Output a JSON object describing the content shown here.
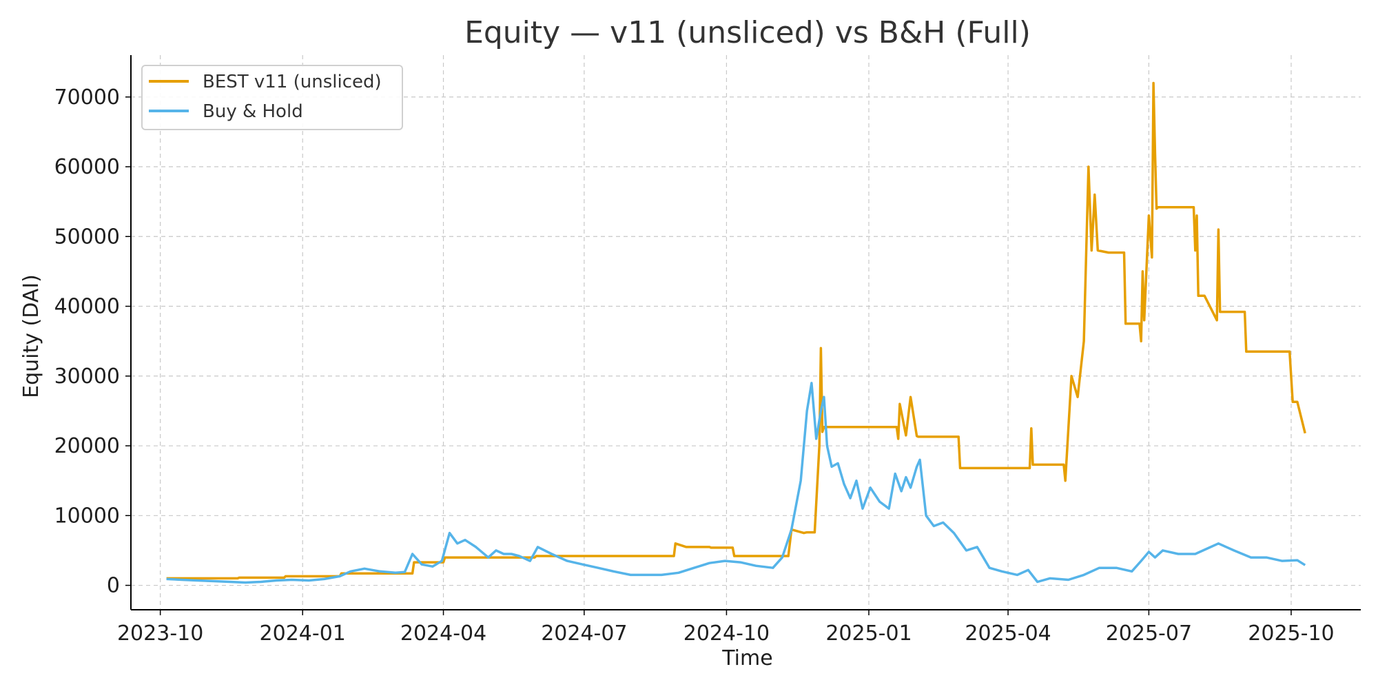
{
  "chart_data": {
    "type": "line",
    "title": "Equity — v11 (unsliced) vs B&H (Full)",
    "xlabel": "Time",
    "ylabel": "Equity (DAI)",
    "xlim": [
      "2023-09-12",
      "2025-11-15"
    ],
    "ylim": [
      -3500,
      76000
    ],
    "x_ticks": [
      "2023-10",
      "2024-01",
      "2024-04",
      "2024-07",
      "2024-10",
      "2025-01",
      "2025-04",
      "2025-07",
      "2025-10"
    ],
    "y_ticks": [
      0,
      10000,
      20000,
      30000,
      40000,
      50000,
      60000,
      70000
    ],
    "grid": true,
    "legend_position": "top-left",
    "series": [
      {
        "name": "BEST v11 (unsliced)",
        "color": "#E69F00",
        "x": [
          "2023-10-05",
          "2023-11-20",
          "2023-11-21",
          "2023-12-20",
          "2023-12-21",
          "2024-01-25",
          "2024-01-26",
          "2024-03-12",
          "2024-03-13",
          "2024-04-01",
          "2024-04-02",
          "2024-05-30",
          "2024-05-31",
          "2024-08-28",
          "2024-08-29",
          "2024-09-05",
          "2024-09-06",
          "2024-09-20",
          "2024-09-21",
          "2024-10-05",
          "2024-10-06",
          "2024-11-10",
          "2024-11-12",
          "2024-11-20",
          "2024-11-22",
          "2024-11-27",
          "2024-11-30",
          "2024-12-01",
          "2024-12-02",
          "2024-12-03",
          "2025-01-19",
          "2025-01-20",
          "2025-01-21",
          "2025-01-25",
          "2025-01-28",
          "2025-02-01",
          "2025-02-02",
          "2025-02-03",
          "2025-02-04",
          "2025-02-28",
          "2025-03-01",
          "2025-04-15",
          "2025-04-16",
          "2025-04-17",
          "2025-05-07",
          "2025-05-08",
          "2025-05-12",
          "2025-05-16",
          "2025-05-20",
          "2025-05-23",
          "2025-05-25",
          "2025-05-27",
          "2025-05-29",
          "2025-06-05",
          "2025-06-06",
          "2025-06-15",
          "2025-06-16",
          "2025-06-25",
          "2025-06-26",
          "2025-06-27",
          "2025-06-28",
          "2025-07-01",
          "2025-07-03",
          "2025-07-04",
          "2025-07-05",
          "2025-07-06",
          "2025-07-07",
          "2025-07-08",
          "2025-07-09",
          "2025-07-30",
          "2025-07-31",
          "2025-08-01",
          "2025-08-02",
          "2025-08-03",
          "2025-08-04",
          "2025-08-06",
          "2025-08-14",
          "2025-08-15",
          "2025-08-16",
          "2025-08-18",
          "2025-09-01",
          "2025-09-02",
          "2025-09-03",
          "2025-09-30",
          "2025-10-02",
          "2025-10-05",
          "2025-10-10"
        ],
        "values": [
          1000,
          1000,
          1100,
          1100,
          1300,
          1300,
          1700,
          1700,
          3300,
          3300,
          4000,
          4000,
          4200,
          4200,
          6000,
          5500,
          5500,
          5500,
          5400,
          5400,
          4200,
          4200,
          8000,
          7500,
          7600,
          7600,
          20000,
          34000,
          22000,
          22700,
          22700,
          21000,
          26000,
          21500,
          27000,
          21400,
          21300,
          21300,
          21300,
          21300,
          16800,
          16800,
          22500,
          17300,
          17300,
          15000,
          30000,
          27000,
          35000,
          60000,
          48000,
          56000,
          48000,
          47700,
          47700,
          47700,
          37500,
          37500,
          35000,
          45000,
          38000,
          53000,
          47000,
          72000,
          62000,
          54000,
          54200,
          54200,
          54200,
          54200,
          48000,
          53000,
          41500,
          41500,
          41500,
          41500,
          38000,
          51000,
          39200,
          39200,
          39200,
          33500,
          33500,
          33500,
          26300,
          26300,
          21800
        ]
      },
      {
        "name": "Buy & Hold",
        "color": "#56B4E9",
        "x": [
          "2023-10-05",
          "2023-10-15",
          "2023-10-25",
          "2023-11-05",
          "2023-11-15",
          "2023-11-25",
          "2023-12-05",
          "2023-12-15",
          "2023-12-25",
          "2024-01-05",
          "2024-01-15",
          "2024-01-25",
          "2024-02-01",
          "2024-02-10",
          "2024-02-20",
          "2024-03-01",
          "2024-03-07",
          "2024-03-12",
          "2024-03-18",
          "2024-03-25",
          "2024-03-31",
          "2024-04-05",
          "2024-04-10",
          "2024-04-15",
          "2024-04-22",
          "2024-04-30",
          "2024-05-05",
          "2024-05-10",
          "2024-05-15",
          "2024-05-20",
          "2024-05-27",
          "2024-06-01",
          "2024-06-10",
          "2024-06-20",
          "2024-06-30",
          "2024-07-10",
          "2024-07-20",
          "2024-07-31",
          "2024-08-10",
          "2024-08-20",
          "2024-08-31",
          "2024-09-10",
          "2024-09-20",
          "2024-09-30",
          "2024-10-10",
          "2024-10-20",
          "2024-10-31",
          "2024-11-06",
          "2024-11-12",
          "2024-11-18",
          "2024-11-22",
          "2024-11-25",
          "2024-11-28",
          "2024-12-01",
          "2024-12-03",
          "2024-12-05",
          "2024-12-08",
          "2024-12-12",
          "2024-12-16",
          "2024-12-20",
          "2024-12-24",
          "2024-12-28",
          "2025-01-02",
          "2025-01-08",
          "2025-01-14",
          "2025-01-18",
          "2025-01-22",
          "2025-01-25",
          "2025-01-28",
          "2025-02-01",
          "2025-02-03",
          "2025-02-07",
          "2025-02-12",
          "2025-02-18",
          "2025-02-25",
          "2025-03-05",
          "2025-03-12",
          "2025-03-20",
          "2025-03-28",
          "2025-04-07",
          "2025-04-14",
          "2025-04-20",
          "2025-04-28",
          "2025-05-10",
          "2025-05-20",
          "2025-05-30",
          "2025-06-10",
          "2025-06-20",
          "2025-06-26",
          "2025-07-01",
          "2025-07-05",
          "2025-07-10",
          "2025-07-20",
          "2025-07-31",
          "2025-08-10",
          "2025-08-15",
          "2025-08-25",
          "2025-09-05",
          "2025-09-15",
          "2025-09-25",
          "2025-10-05",
          "2025-10-10"
        ],
        "values": [
          900,
          800,
          700,
          600,
          500,
          400,
          500,
          700,
          800,
          700,
          900,
          1300,
          2000,
          2400,
          2000,
          1800,
          1900,
          4500,
          3000,
          2700,
          3500,
          7500,
          6000,
          6500,
          5500,
          4000,
          5000,
          4500,
          4500,
          4200,
          3500,
          5500,
          4500,
          3500,
          3000,
          2500,
          2000,
          1500,
          1500,
          1500,
          1800,
          2500,
          3200,
          3500,
          3300,
          2800,
          2500,
          4000,
          8000,
          15000,
          25000,
          29000,
          21000,
          25000,
          27000,
          20000,
          17000,
          17500,
          14500,
          12500,
          15000,
          11000,
          14000,
          12000,
          11000,
          16000,
          13500,
          15500,
          14000,
          17000,
          18000,
          10000,
          8500,
          9000,
          7500,
          5000,
          5500,
          2500,
          2000,
          1500,
          2200,
          500,
          1000,
          800,
          1500,
          2500,
          2500,
          2000,
          3500,
          4800,
          4000,
          5000,
          4500,
          4500,
          5500,
          6000,
          5000,
          4000,
          4000,
          3500,
          3600,
          2900
        ]
      }
    ]
  }
}
